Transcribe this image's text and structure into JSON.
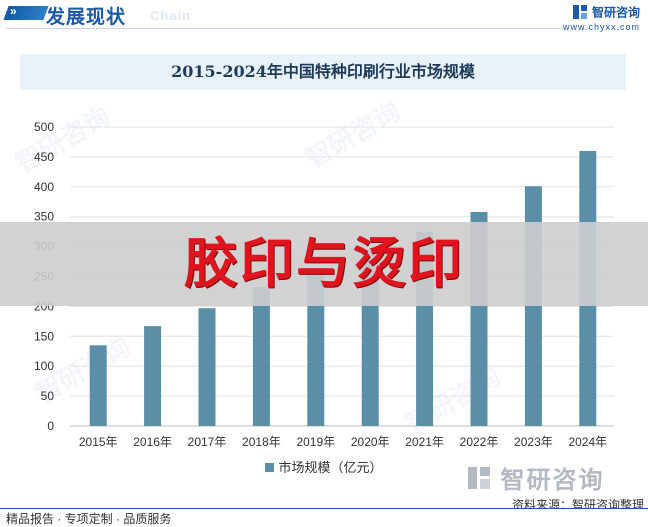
{
  "header": {
    "title": "发展现状",
    "subtitle": "Chain",
    "arrow_glyph": "»",
    "brand_name": "智研咨询",
    "brand_url": "www.chyxx.com"
  },
  "colors": {
    "bar": "#5b8fa8",
    "accent": "#1a5aa6",
    "overlay_text": "#e0141e"
  },
  "chart_data": {
    "type": "bar",
    "title": "2015-2024年中国特种印刷行业市场规模",
    "categories": [
      "2015年",
      "2016年",
      "2017年",
      "2018年",
      "2019年",
      "2020年",
      "2021年",
      "2022年",
      "2023年",
      "2024年"
    ],
    "series": [
      {
        "name": "市场规模（亿元）",
        "values": [
          135,
          167,
          197,
          232,
          262,
          295,
          325,
          358,
          401,
          460
        ]
      }
    ],
    "ylim": [
      0,
      500
    ],
    "yticks": [
      "0",
      "50",
      "100",
      "150",
      "200",
      "250",
      "300",
      "350",
      "400",
      "450",
      "500"
    ],
    "grid": true,
    "legend": "bottom"
  },
  "overlay": {
    "text": "胶印与烫印"
  },
  "watermark": {
    "text": "智研咨询"
  },
  "bottom_logo": {
    "text": "智研咨询"
  },
  "source": "资料来源：智研咨询整理",
  "footer": "精品报告 · 专项定制 · 品质服务"
}
